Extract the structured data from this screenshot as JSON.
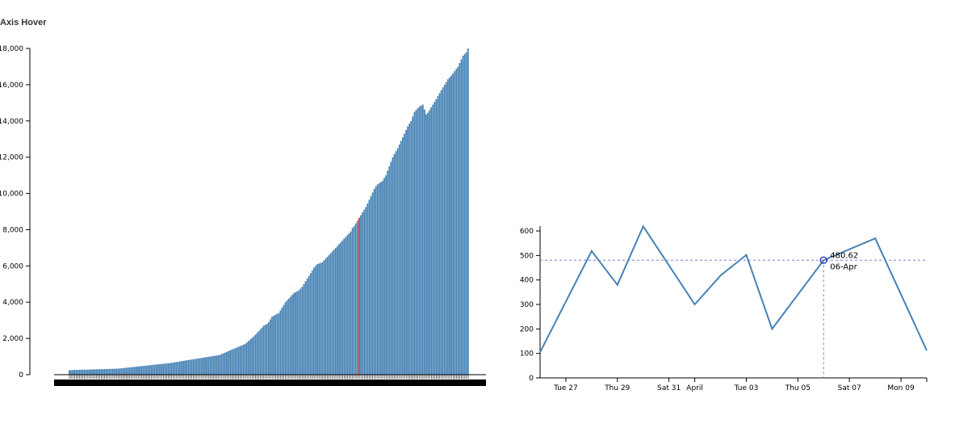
{
  "page": {
    "title": "Axis Hover"
  },
  "colors": {
    "bar": "#4682b4",
    "hover_bar": "#cc3333",
    "line": "#4682b4",
    "crosshair": "#8080d0",
    "focus": "#2a2aa8"
  },
  "chart_data": [
    {
      "type": "bar",
      "title": "",
      "ylim": [
        0,
        18000
      ],
      "y_ticks": [
        "0",
        "2,000",
        "4,000",
        "6,000",
        "8,000",
        "10,000",
        "12,000",
        "14,000",
        "16,000",
        "18,000"
      ],
      "hover_index": 173,
      "values": [
        250,
        253,
        256,
        259,
        262,
        264,
        267,
        270,
        273,
        276,
        278,
        281,
        284,
        287,
        290,
        292,
        295,
        298,
        301,
        304,
        306,
        309,
        312,
        315,
        318,
        320,
        323,
        326,
        329,
        332,
        340,
        350,
        360,
        370,
        380,
        390,
        400,
        410,
        420,
        430,
        440,
        450,
        460,
        470,
        480,
        490,
        500,
        510,
        520,
        530,
        540,
        550,
        560,
        570,
        580,
        590,
        600,
        610,
        620,
        630,
        640,
        655,
        670,
        685,
        700,
        715,
        730,
        745,
        760,
        775,
        790,
        805,
        820,
        835,
        850,
        865,
        880,
        895,
        910,
        925,
        940,
        955,
        970,
        985,
        1000,
        1015,
        1030,
        1045,
        1060,
        1075,
        1100,
        1140,
        1180,
        1220,
        1260,
        1300,
        1340,
        1380,
        1420,
        1460,
        1500,
        1540,
        1580,
        1620,
        1660,
        1700,
        1780,
        1860,
        1940,
        2020,
        2100,
        2200,
        2300,
        2400,
        2500,
        2600,
        2700,
        2750,
        2800,
        2900,
        3050,
        3200,
        3250,
        3300,
        3350,
        3400,
        3550,
        3700,
        3850,
        4000,
        4100,
        4200,
        4300,
        4400,
        4500,
        4550,
        4600,
        4650,
        4750,
        4850,
        5000,
        5150,
        5300,
        5450,
        5600,
        5750,
        5900,
        6000,
        6100,
        6133,
        6167,
        6200,
        6300,
        6400,
        6500,
        6600,
        6700,
        6800,
        6900,
        7000,
        7100,
        7200,
        7300,
        7400,
        7500,
        7600,
        7700,
        7800,
        7900,
        8100,
        8200,
        8350,
        8500,
        8650,
        8800,
        8950,
        9100,
        9250,
        9450,
        9650,
        9850,
        10050,
        10250,
        10400,
        10500,
        10567,
        10633,
        10700,
        10850,
        11000,
        11250,
        11500,
        11750,
        12000,
        12167,
        12333,
        12500,
        12700,
        12900,
        13100,
        13300,
        13500,
        13700,
        13850,
        14000,
        14250,
        14500,
        14600,
        14700,
        14800,
        14850,
        14900,
        14633,
        14367,
        14450,
        14600,
        14750,
        14900,
        15050,
        15200,
        15367,
        15533,
        15700,
        15850,
        16000,
        16150,
        16300,
        16400,
        16500,
        16625,
        16750,
        16875,
        17000,
        17200,
        17400,
        17600,
        17700,
        17800,
        18000
      ]
    },
    {
      "type": "line",
      "title": "",
      "ylim": [
        0,
        620
      ],
      "x_ticks": [
        "Tue 27",
        "Thu 29",
        "Sat 31",
        "April",
        "Tue 03",
        "Thu 05",
        "Sat 07",
        "Mon 09"
      ],
      "y_ticks": [
        "0",
        "100",
        "200",
        "300",
        "400",
        "500",
        "600"
      ],
      "x_domain": [
        "2018-03-26",
        "2018-04-10"
      ],
      "series": [
        {
          "x": [
            "2018-03-26",
            "2018-03-28",
            "2018-03-29",
            "2018-03-30",
            "2018-04-01",
            "2018-04-02",
            "2018-04-03",
            "2018-04-04",
            "2018-04-06",
            "2018-04-08",
            "2018-04-10"
          ],
          "values": [
            105,
            518,
            380,
            619,
            300,
            418,
            502,
            200,
            480.62,
            570,
            112
          ]
        }
      ],
      "hover": {
        "x": "2018-04-06",
        "value_label": "480.62",
        "date_label": "06-Apr"
      }
    }
  ]
}
